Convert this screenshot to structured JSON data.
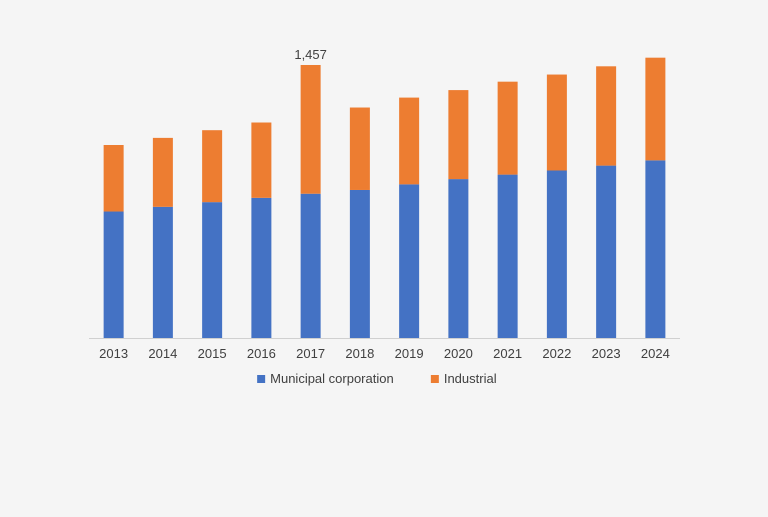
{
  "chart_data": {
    "type": "bar",
    "stacked": true,
    "categories": [
      "2013",
      "2014",
      "2015",
      "2016",
      "2017",
      "2018",
      "2019",
      "2020",
      "2021",
      "2022",
      "2023",
      "2024"
    ],
    "series": [
      {
        "name": "Municipal corporation",
        "color": "#4472c4",
        "values": [
          675,
          700,
          725,
          748,
          770,
          790,
          820,
          848,
          872,
          894,
          920,
          948
        ]
      },
      {
        "name": "Industrial",
        "color": "#ed7d31",
        "values": [
          355,
          368,
          384,
          402,
          687,
          440,
          463,
          475,
          496,
          512,
          530,
          548
        ]
      }
    ],
    "annotations": [
      {
        "category": "2017",
        "text": "1,457"
      }
    ],
    "ylim": [
      0,
      1600
    ],
    "grid": false,
    "legend": "bottom",
    "title": "",
    "xlabel": "",
    "ylabel": ""
  }
}
